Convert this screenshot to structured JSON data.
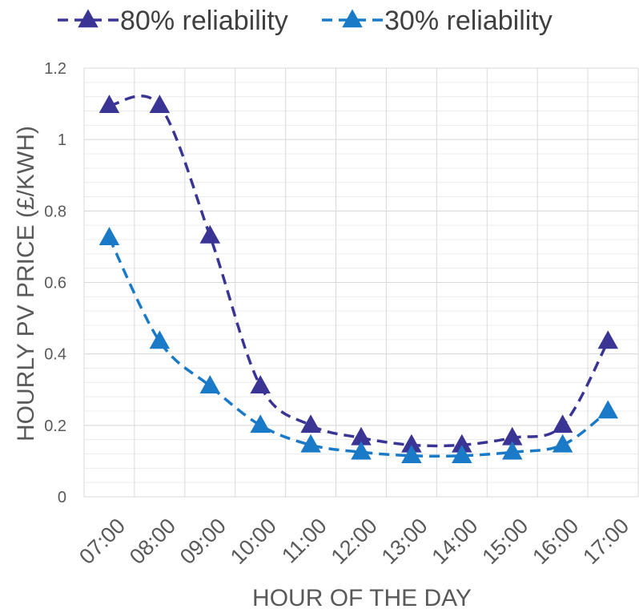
{
  "chart_data": {
    "type": "line",
    "xlabel": "HOUR OF THE DAY",
    "ylabel": "HOURLY PV PRICE (£/KWH)",
    "categories": [
      "07:00",
      "08:00",
      "09:00",
      "10:00",
      "11:00",
      "12:00",
      "13:00",
      "14:00",
      "15:00",
      "16:00",
      "17:00"
    ],
    "y_ticks": [
      "0",
      "0.2",
      "0.4",
      "0.6",
      "0.8",
      "1",
      "1.2"
    ],
    "ylim": [
      0,
      1.2
    ],
    "grid": true,
    "minor_grid": true,
    "legend_position": "top",
    "series": [
      {
        "name": "80% reliability",
        "color": "#3a3494",
        "marker": "triangle",
        "line_style": "dashed",
        "x": [
          0.5,
          1.5,
          2.5,
          3.5,
          4.5,
          5.5,
          6.5,
          7.5,
          8.5,
          9.5,
          10.4
        ],
        "values": [
          1.095,
          1.095,
          0.73,
          0.31,
          0.2,
          0.165,
          0.145,
          0.145,
          0.165,
          0.2,
          0.435
        ]
      },
      {
        "name": "30% reliability",
        "color": "#1a7ac8",
        "marker": "triangle",
        "line_style": "dashed",
        "x": [
          0.5,
          1.5,
          2.5,
          3.5,
          4.5,
          5.5,
          6.5,
          7.5,
          8.5,
          9.5,
          10.4
        ],
        "values": [
          0.725,
          0.435,
          0.31,
          0.2,
          0.145,
          0.125,
          0.115,
          0.115,
          0.125,
          0.145,
          0.24
        ]
      }
    ]
  }
}
